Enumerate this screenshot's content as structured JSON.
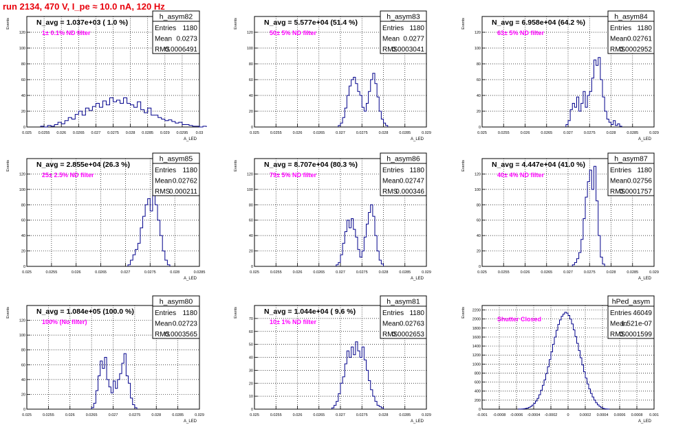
{
  "page_title": "run 2134,   470 V, I_pe ≈ 10.0 nA, 120 Hz",
  "colors": {
    "hist": "#00008b",
    "title_red": "#e8000b",
    "filter_label": "#ff00ff",
    "grid": "#000000"
  },
  "common": {
    "y_axis_label": "Events",
    "x_axis_label": "A_LED",
    "stat_labels": [
      "Entries",
      "Mean",
      "RMS"
    ]
  },
  "chart_data": [
    {
      "type": "bar",
      "name": "h_asym82",
      "n_avg_label": "N_avg = 1.037e+03 ( 1.0 %)",
      "filter_label": "1± 0.1% ND filter",
      "stats": {
        "entries": "1180",
        "mean": "0.0273",
        "rms": "0.0006491"
      },
      "xlim": [
        0.025,
        0.03
      ],
      "ylim": [
        0,
        140
      ],
      "x_ticks": [
        "0.025",
        "0.0255",
        "0.026",
        "0.0265",
        "0.027",
        "0.0275",
        "0.028",
        "0.0285",
        "0.029",
        "0.0295",
        "0.03"
      ],
      "y_ticks": [
        "0",
        "20",
        "40",
        "60",
        "80",
        "100",
        "120"
      ],
      "bin_width": 0.0001,
      "bins_start": 0.0254,
      "values": [
        1,
        0,
        2,
        1,
        3,
        6,
        4,
        8,
        12,
        10,
        16,
        20,
        15,
        24,
        21,
        26,
        30,
        25,
        33,
        28,
        37,
        32,
        34,
        30,
        37,
        30,
        28,
        25,
        32,
        22,
        18,
        24,
        15,
        15,
        12,
        10,
        8,
        9,
        7,
        5,
        6,
        3,
        3,
        2,
        1,
        1,
        0,
        1
      ]
    },
    {
      "type": "bar",
      "name": "h_asym83",
      "n_avg_label": "N_avg = 5.577e+04 (51.4 %)",
      "filter_label": "50± 5% ND filter",
      "stats": {
        "entries": "1180",
        "mean": "0.0277",
        "rms": "0.0003041"
      },
      "xlim": [
        0.025,
        0.029
      ],
      "ylim": [
        0,
        140
      ],
      "x_ticks": [
        "0.025",
        "0.0255",
        "0.026",
        "0.0265",
        "0.027",
        "0.0275",
        "0.028",
        "0.0285",
        "0.029"
      ],
      "y_ticks": [
        "0",
        "20",
        "40",
        "60",
        "80",
        "100",
        "120"
      ],
      "bin_width": 5e-05,
      "bins_start": 0.02695,
      "values": [
        2,
        5,
        12,
        24,
        40,
        52,
        60,
        63,
        55,
        45,
        40,
        25,
        20,
        30,
        45,
        60,
        68,
        55,
        38,
        20,
        10,
        5,
        2
      ]
    },
    {
      "type": "bar",
      "name": "h_asym84",
      "n_avg_label": "N_avg = 6.958e+04 (64.2 %)",
      "filter_label": "63± 5% ND filter",
      "stats": {
        "entries": "1180",
        "mean": "0.02761",
        "rms": "0.0002952"
      },
      "xlim": [
        0.025,
        0.029
      ],
      "ylim": [
        0,
        140
      ],
      "x_ticks": [
        "0.025",
        "0.0255",
        "0.026",
        "0.0265",
        "0.027",
        "0.0275",
        "0.028",
        "0.0285",
        "0.029"
      ],
      "y_ticks": [
        "0",
        "20",
        "40",
        "60",
        "80",
        "100",
        "120"
      ],
      "bin_width": 5e-05,
      "bins_start": 0.02695,
      "values": [
        3,
        8,
        22,
        30,
        25,
        38,
        20,
        30,
        45,
        25,
        40,
        45,
        62,
        85,
        78,
        88,
        60,
        38,
        20,
        10,
        6,
        3,
        8,
        2,
        4,
        1
      ]
    },
    {
      "type": "bar",
      "name": "h_asym85",
      "n_avg_label": "N_avg = 2.855e+04 (26.3 %)",
      "filter_label": "25± 2.5% ND filter",
      "stats": {
        "entries": "1180",
        "mean": "0.02762",
        "rms": "0.000211"
      },
      "xlim": [
        0.025,
        0.0285
      ],
      "ylim": [
        0,
        140
      ],
      "x_ticks": [
        "0.025",
        "0.0255",
        "0.026",
        "0.0265",
        "0.027",
        "0.0275",
        "0.028",
        "0.0285"
      ],
      "y_ticks": [
        "0",
        "20",
        "40",
        "60",
        "80",
        "100",
        "120"
      ],
      "bin_width": 5e-05,
      "bins_start": 0.02705,
      "values": [
        2,
        8,
        15,
        22,
        30,
        50,
        65,
        80,
        88,
        72,
        92,
        80,
        60,
        40,
        20,
        8,
        2
      ]
    },
    {
      "type": "bar",
      "name": "h_asym86",
      "n_avg_label": "N_avg = 8.707e+04 (80.3 %)",
      "filter_label": "79± 5% ND filter",
      "stats": {
        "entries": "1180",
        "mean": "0.02747",
        "rms": "0.000346"
      },
      "xlim": [
        0.025,
        0.029
      ],
      "ylim": [
        0,
        140
      ],
      "x_ticks": [
        "0.025",
        "0.0255",
        "0.026",
        "0.0265",
        "0.027",
        "0.0275",
        "0.028",
        "0.0285",
        "0.029"
      ],
      "y_ticks": [
        "0",
        "20",
        "40",
        "60",
        "80",
        "100",
        "120"
      ],
      "bin_width": 5e-05,
      "bins_start": 0.0269,
      "values": [
        2,
        5,
        15,
        30,
        45,
        60,
        50,
        62,
        48,
        38,
        22,
        12,
        20,
        38,
        55,
        70,
        80,
        65,
        40,
        20,
        8,
        3
      ]
    },
    {
      "type": "bar",
      "name": "h_asym87",
      "n_avg_label": "N_avg = 4.447e+04 (41.0 %)",
      "filter_label": "40± 4% ND filter",
      "stats": {
        "entries": "1180",
        "mean": "0.02756",
        "rms": "0.0001757"
      },
      "xlim": [
        0.025,
        0.029
      ],
      "ylim": [
        0,
        140
      ],
      "x_ticks": [
        "0.025",
        "0.0255",
        "0.026",
        "0.0265",
        "0.027",
        "0.0275",
        "0.028",
        "0.0285",
        "0.029"
      ],
      "y_ticks": [
        "0",
        "20",
        "40",
        "60",
        "80",
        "100",
        "120"
      ],
      "bin_width": 5e-05,
      "bins_start": 0.0271,
      "values": [
        2,
        5,
        10,
        18,
        35,
        62,
        90,
        110,
        125,
        100,
        130,
        85,
        40,
        12,
        3
      ]
    },
    {
      "type": "bar",
      "name": "h_asym80",
      "n_avg_label": "N_avg = 1.084e+05 (100.0 %)",
      "filter_label": "100% (No filter)",
      "stats": {
        "entries": "1180",
        "mean": "0.02723",
        "rms": "0.0003565"
      },
      "xlim": [
        0.025,
        0.029
      ],
      "ylim": [
        0,
        140
      ],
      "x_ticks": [
        "0.025",
        "0.0255",
        "0.026",
        "0.0265",
        "0.027",
        "0.0275",
        "0.028",
        "0.0285",
        "0.029"
      ],
      "y_ticks": [
        "0",
        "20",
        "40",
        "60",
        "80",
        "100",
        "120"
      ],
      "bin_width": 5e-05,
      "bins_start": 0.0265,
      "values": [
        2,
        8,
        25,
        45,
        65,
        55,
        70,
        40,
        30,
        22,
        38,
        28,
        40,
        48,
        62,
        75,
        45,
        35,
        15,
        6,
        2
      ]
    },
    {
      "type": "bar",
      "name": "h_asym81",
      "n_avg_label": "N_avg = 1.044e+04 ( 9.6 %)",
      "filter_label": "10± 1% ND filter",
      "stats": {
        "entries": "1180",
        "mean": "0.02763",
        "rms": "0.0002653"
      },
      "xlim": [
        0.025,
        0.029
      ],
      "ylim": [
        0,
        80
      ],
      "x_ticks": [
        "0.025",
        "0.0255",
        "0.026",
        "0.0265",
        "0.027",
        "0.0275",
        "0.028",
        "0.0285",
        "0.029"
      ],
      "y_ticks": [
        "0",
        "10",
        "20",
        "30",
        "40",
        "50",
        "60",
        "70"
      ],
      "bin_width": 5e-05,
      "bins_start": 0.0268,
      "values": [
        1,
        3,
        6,
        12,
        20,
        25,
        35,
        45,
        40,
        48,
        42,
        52,
        45,
        40,
        48,
        38,
        30,
        22,
        15,
        10,
        6,
        3,
        2,
        1
      ]
    },
    {
      "type": "bar",
      "name": "hPed_asym",
      "n_avg_label": "",
      "filter_label": "Shutter Closed",
      "stats": {
        "entries": "46049",
        "mean": "1.521e-07",
        "rms": "0.0001599"
      },
      "xlim": [
        -0.001,
        0.001
      ],
      "ylim": [
        0,
        2300
      ],
      "x_ticks": [
        "-0.001",
        "-0.0008",
        "-0.0006",
        "-0.0004",
        "-0.0002",
        "0",
        "0.0002",
        "0.0004",
        "0.0006",
        "0.0008",
        "0.001"
      ],
      "y_ticks": [
        "0",
        "200",
        "400",
        "600",
        "800",
        "1000",
        "1200",
        "1400",
        "1600",
        "1800",
        "2000",
        "2200"
      ],
      "bin_width": 2e-05,
      "bins_start": -0.00058,
      "values": [
        1,
        2,
        4,
        8,
        15,
        25,
        40,
        60,
        90,
        130,
        180,
        240,
        320,
        420,
        530,
        650,
        790,
        940,
        1100,
        1270,
        1440,
        1600,
        1750,
        1880,
        1980,
        2060,
        2110,
        2150,
        2130,
        2080,
        2000,
        1890,
        1760,
        1610,
        1460,
        1300,
        1140,
        980,
        830,
        690,
        560,
        450,
        350,
        270,
        200,
        140,
        95,
        60,
        35,
        18,
        8,
        3,
        1
      ]
    }
  ]
}
